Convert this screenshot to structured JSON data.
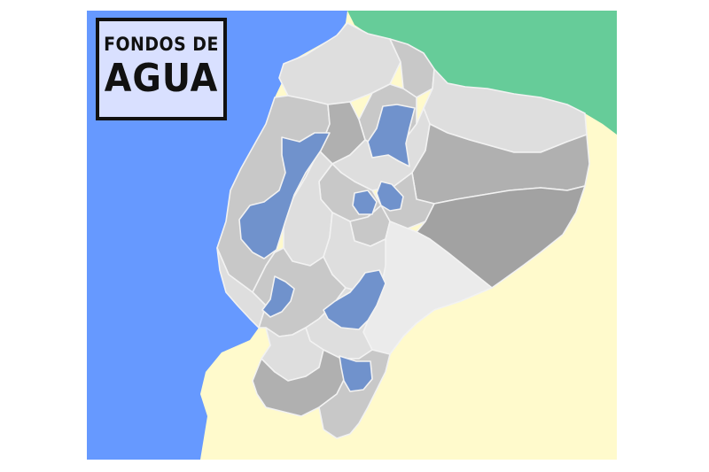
{
  "title": {
    "line1": "FONDOS DE",
    "line2": "AGUA"
  },
  "colors": {
    "ocean": "#6699ff",
    "colombia": "#66cc99",
    "peru": "#fffacc",
    "fondos_de_agua": "#7092cc",
    "province_light": "#dedede",
    "province_mid": "#c8c8c8",
    "province_dark": "#b0b0b0",
    "province_darker": "#a2a2a2",
    "province_lightest": "#ebebeb",
    "border": "#f2f2f2"
  },
  "legend": {
    "highlighted_regions_meaning": "fondos-de-agua"
  }
}
